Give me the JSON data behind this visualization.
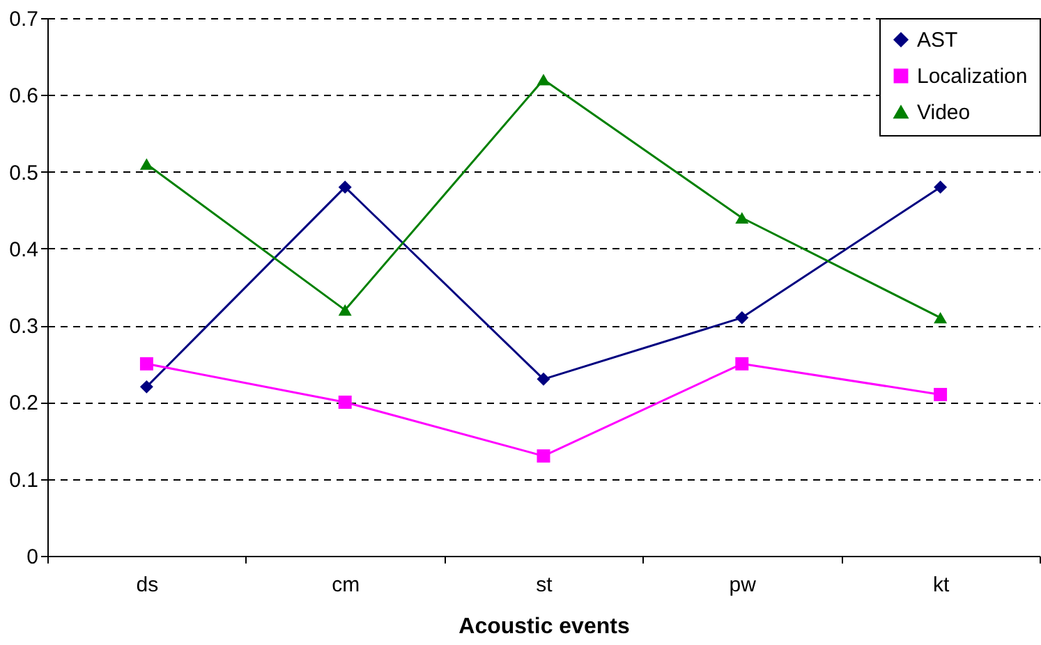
{
  "chart_data": {
    "type": "line",
    "xlabel": "Acoustic events",
    "categories": [
      "ds",
      "cm",
      "st",
      "pw",
      "kt"
    ],
    "series": [
      {
        "name": "AST",
        "color": "#000080",
        "marker": "diamond",
        "values": [
          0.22,
          0.48,
          0.23,
          0.31,
          0.48
        ]
      },
      {
        "name": "Localization",
        "color": "#ff00ff",
        "marker": "square",
        "values": [
          0.25,
          0.2,
          0.13,
          0.25,
          0.21
        ]
      },
      {
        "name": "Video",
        "color": "#008000",
        "marker": "triangle",
        "values": [
          0.51,
          0.32,
          0.62,
          0.44,
          0.31
        ]
      }
    ],
    "ylim": [
      0,
      0.7
    ],
    "yticks": [
      0,
      0.1,
      0.2,
      0.3,
      0.4,
      0.5,
      0.6,
      0.7
    ],
    "grid": "y",
    "legend": "top right",
    "line_style": "solid"
  }
}
